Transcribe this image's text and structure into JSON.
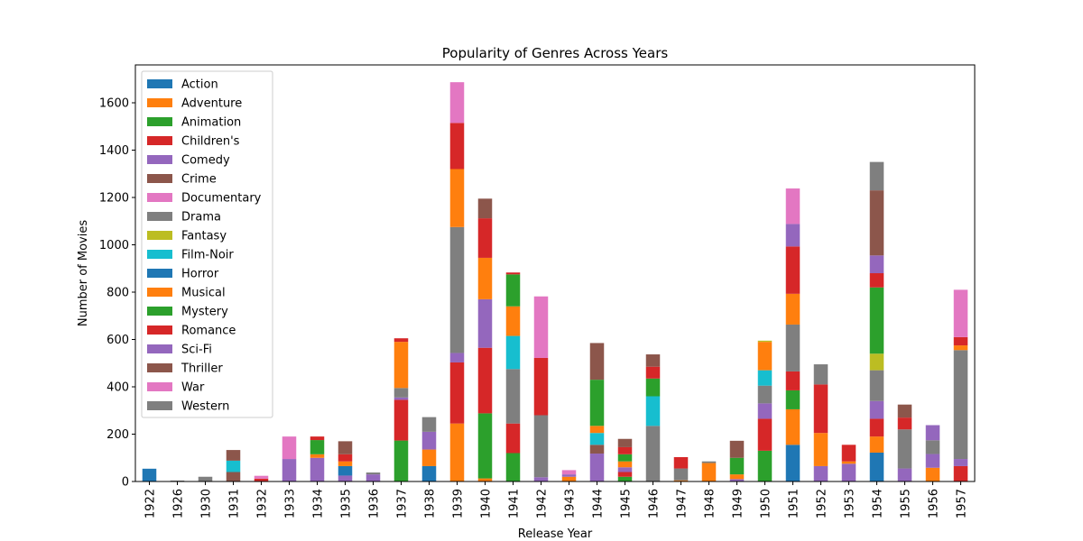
{
  "chart_data": {
    "type": "bar",
    "stacked": true,
    "title": "Popularity of Genres Across Years",
    "xlabel": "Release Year",
    "ylabel": "Number of Movies",
    "ylim": [
      0,
      1760
    ],
    "yticks": [
      0,
      200,
      400,
      600,
      800,
      1000,
      1200,
      1400,
      1600
    ],
    "grid": false,
    "legend_position": "top-left",
    "categories": [
      "1922",
      "1926",
      "1930",
      "1931",
      "1932",
      "1933",
      "1934",
      "1935",
      "1936",
      "1937",
      "1938",
      "1939",
      "1940",
      "1941",
      "1942",
      "1943",
      "1944",
      "1945",
      "1946",
      "1947",
      "1948",
      "1949",
      "1950",
      "1951",
      "1952",
      "1953",
      "1954",
      "1955",
      "1956",
      "1957"
    ],
    "series": [
      {
        "name": "Action",
        "color": "#1f77b4",
        "values": [
          54,
          0,
          0,
          0,
          0,
          0,
          0,
          0,
          0,
          0,
          0,
          0,
          0,
          0,
          0,
          0,
          0,
          0,
          0,
          0,
          0,
          0,
          0,
          0,
          0,
          0,
          0,
          0,
          0,
          0
        ]
      },
      {
        "name": "Adventure",
        "color": "#ff7f0e",
        "values": [
          0,
          0,
          0,
          0,
          0,
          0,
          0,
          0,
          0,
          0,
          0,
          0,
          13,
          0,
          0,
          0,
          0,
          0,
          0,
          0,
          0,
          0,
          0,
          0,
          0,
          0,
          0,
          0,
          0,
          0
        ]
      },
      {
        "name": "Animation",
        "color": "#2ca02c",
        "values": [
          0,
          0,
          0,
          0,
          0,
          0,
          0,
          0,
          0,
          173,
          0,
          0,
          275,
          120,
          0,
          0,
          0,
          20,
          0,
          0,
          0,
          0,
          130,
          0,
          0,
          0,
          0,
          0,
          0,
          0
        ]
      },
      {
        "name": "Children's",
        "color": "#d62728",
        "values": [
          0,
          0,
          0,
          0,
          8,
          0,
          0,
          0,
          0,
          0,
          0,
          0,
          0,
          0,
          0,
          0,
          0,
          20,
          0,
          0,
          0,
          0,
          0,
          0,
          0,
          0,
          0,
          0,
          0,
          0
        ]
      },
      {
        "name": "Comedy",
        "color": "#9467bd",
        "values": [
          0,
          0,
          0,
          0,
          0,
          0,
          0,
          25,
          0,
          0,
          0,
          0,
          0,
          0,
          18,
          0,
          118,
          12,
          0,
          0,
          0,
          0,
          0,
          0,
          0,
          0,
          0,
          0,
          0,
          0
        ]
      },
      {
        "name": "Crime",
        "color": "#8c564b",
        "values": [
          0,
          0,
          0,
          40,
          0,
          0,
          0,
          0,
          0,
          0,
          0,
          0,
          0,
          0,
          0,
          0,
          37,
          0,
          0,
          0,
          0,
          0,
          0,
          0,
          0,
          0,
          0,
          0,
          0,
          0
        ]
      },
      {
        "name": "Documentary",
        "color": "#e377c2",
        "values": [
          0,
          0,
          0,
          0,
          0,
          0,
          0,
          0,
          0,
          0,
          0,
          0,
          0,
          0,
          0,
          0,
          0,
          0,
          0,
          0,
          0,
          0,
          0,
          0,
          0,
          0,
          0,
          0,
          0,
          0
        ]
      },
      {
        "name": "Drama",
        "color": "#7f7f7f",
        "values": [
          0,
          4,
          20,
          0,
          0,
          0,
          0,
          0,
          0,
          0,
          0,
          0,
          0,
          0,
          262,
          0,
          0,
          0,
          235,
          50,
          0,
          0,
          0,
          0,
          0,
          0,
          0,
          0,
          0,
          0
        ]
      },
      {
        "name": "Fantasy",
        "color": "#bcbd22",
        "values": [
          0,
          0,
          0,
          0,
          0,
          0,
          0,
          0,
          0,
          0,
          0,
          0,
          0,
          0,
          0,
          0,
          0,
          0,
          0,
          0,
          0,
          0,
          0,
          0,
          0,
          0,
          0,
          0,
          0,
          0
        ]
      },
      {
        "name": "Film-Noir",
        "color": "#17becf",
        "values": [
          0,
          0,
          0,
          48,
          0,
          0,
          0,
          0,
          0,
          0,
          0,
          0,
          0,
          0,
          0,
          0,
          0,
          0,
          0,
          0,
          0,
          0,
          0,
          0,
          0,
          0,
          0,
          0,
          0,
          0
        ]
      },
      {
        "name": "Horror",
        "color": "#1f77b4",
        "values": [
          0,
          0,
          0,
          0,
          0,
          0,
          0,
          40,
          0,
          0,
          65,
          0,
          0,
          0,
          0,
          0,
          0,
          0,
          0,
          0,
          0,
          0,
          0,
          155,
          0,
          0,
          122,
          0,
          0,
          0
        ]
      },
      {
        "name": "Musical",
        "color": "#ff7f0e",
        "values": [
          0,
          0,
          0,
          0,
          0,
          0,
          10,
          20,
          0,
          0,
          70,
          245,
          0,
          0,
          0,
          20,
          0,
          0,
          0,
          5,
          78,
          20,
          0,
          150,
          0,
          0,
          68,
          0,
          58,
          0
        ]
      },
      {
        "name": "Mystery",
        "color": "#2ca02c",
        "values": [
          0,
          0,
          0,
          0,
          0,
          0,
          58,
          0,
          0,
          0,
          0,
          0,
          0,
          0,
          0,
          0,
          0,
          0,
          0,
          0,
          0,
          0,
          0,
          0,
          0,
          0,
          0,
          0,
          0,
          0
        ]
      },
      {
        "name": "Romance",
        "color": "#d62728",
        "values": [
          0,
          0,
          0,
          0,
          0,
          0,
          0,
          0,
          0,
          0,
          0,
          0,
          0,
          0,
          0,
          0,
          0,
          0,
          0,
          0,
          0,
          0,
          0,
          0,
          0,
          0,
          0,
          0,
          0,
          0
        ]
      },
      {
        "name": "Sci-Fi",
        "color": "#9467bd",
        "values": [
          0,
          0,
          0,
          0,
          0,
          95,
          100,
          0,
          30,
          0,
          0,
          0,
          0,
          0,
          0,
          0,
          0,
          0,
          0,
          0,
          0,
          0,
          0,
          0,
          65,
          75,
          0,
          55,
          0,
          0
        ]
      },
      {
        "name": "Thriller",
        "color": "#8c564b",
        "values": [
          0,
          0,
          0,
          0,
          0,
          0,
          0,
          0,
          0,
          0,
          0,
          0,
          0,
          0,
          0,
          0,
          0,
          0,
          0,
          0,
          0,
          0,
          0,
          0,
          0,
          0,
          0,
          0,
          0,
          0
        ]
      },
      {
        "name": "War",
        "color": "#e377c2",
        "values": [
          0,
          0,
          0,
          0,
          0,
          0,
          0,
          0,
          0,
          0,
          0,
          0,
          0,
          0,
          0,
          0,
          0,
          0,
          0,
          0,
          0,
          0,
          0,
          0,
          0,
          0,
          0,
          0,
          0,
          0
        ]
      },
      {
        "name": "Western",
        "color": "#7f7f7f",
        "values": [
          0,
          0,
          0,
          0,
          0,
          0,
          0,
          0,
          0,
          0,
          0,
          0,
          0,
          0,
          0,
          0,
          0,
          0,
          0,
          0,
          0,
          0,
          0,
          0,
          0,
          0,
          0,
          0,
          0,
          0
        ]
      }
    ],
    "stacks": {
      "1922": [
        [
          "#1f77b4",
          54
        ]
      ],
      "1926": [
        [
          "#7f7f7f",
          4
        ]
      ],
      "1930": [
        [
          "#7f7f7f",
          20
        ]
      ],
      "1931": [
        [
          "#8c564b",
          40
        ],
        [
          "#17becf",
          48
        ],
        [
          "#8c564b",
          45
        ]
      ],
      "1932": [
        [
          "#d62728",
          12
        ],
        [
          "#e377c2",
          12
        ]
      ],
      "1933": [
        [
          "#9467bd",
          95
        ],
        [
          "#e377c2",
          95
        ]
      ],
      "1934": [
        [
          "#9467bd",
          100
        ],
        [
          "#ff7f0e",
          15
        ],
        [
          "#2ca02c",
          60
        ],
        [
          "#d62728",
          15
        ]
      ],
      "1935": [
        [
          "#9467bd",
          25
        ],
        [
          "#1f77b4",
          40
        ],
        [
          "#ff7f0e",
          20
        ],
        [
          "#d62728",
          30
        ],
        [
          "#8c564b",
          55
        ]
      ],
      "1936": [
        [
          "#9467bd",
          30
        ],
        [
          "#7f7f7f",
          8
        ]
      ],
      "1937": [
        [
          "#2ca02c",
          173
        ],
        [
          "#d62728",
          172
        ],
        [
          "#9467bd",
          10
        ],
        [
          "#7f7f7f",
          40
        ],
        [
          "#ff7f0e",
          195
        ],
        [
          "#d62728",
          15
        ]
      ],
      "1938": [
        [
          "#1f77b4",
          65
        ],
        [
          "#ff7f0e",
          70
        ],
        [
          "#9467bd",
          75
        ],
        [
          "#7f7f7f",
          62
        ]
      ],
      "1939": [
        [
          "#ff7f0e",
          245
        ],
        [
          "#d62728",
          258
        ],
        [
          "#9467bd",
          40
        ],
        [
          "#7f7f7f",
          532
        ],
        [
          "#ff7f0e",
          245
        ],
        [
          "#d62728",
          195
        ],
        [
          "#e377c2",
          172
        ]
      ],
      "1940": [
        [
          "#ff7f0e",
          13
        ],
        [
          "#2ca02c",
          275
        ],
        [
          "#d62728",
          277
        ],
        [
          "#9467bd",
          205
        ],
        [
          "#ff7f0e",
          175
        ],
        [
          "#d62728",
          167
        ],
        [
          "#8c564b",
          83
        ]
      ],
      "1941": [
        [
          "#2ca02c",
          120
        ],
        [
          "#d62728",
          125
        ],
        [
          "#7f7f7f",
          230
        ],
        [
          "#17becf",
          140
        ],
        [
          "#ff7f0e",
          125
        ],
        [
          "#2ca02c",
          135
        ],
        [
          "#d62728",
          8
        ]
      ],
      "1942": [
        [
          "#9467bd",
          18
        ],
        [
          "#7f7f7f",
          262
        ],
        [
          "#d62728",
          242
        ],
        [
          "#e377c2",
          260
        ]
      ],
      "1943": [
        [
          "#ff7f0e",
          20
        ],
        [
          "#9467bd",
          10
        ],
        [
          "#e377c2",
          18
        ]
      ],
      "1944": [
        [
          "#9467bd",
          118
        ],
        [
          "#8c564b",
          37
        ],
        [
          "#ff7f0e",
          0
        ],
        [
          "#17becf",
          50
        ],
        [
          "#ff7f0e",
          30
        ],
        [
          "#2ca02c",
          195
        ],
        [
          "#8c564b",
          155
        ]
      ],
      "1945": [
        [
          "#2ca02c",
          20
        ],
        [
          "#d62728",
          20
        ],
        [
          "#9467bd",
          20
        ],
        [
          "#ff7f0e",
          25
        ],
        [
          "#2ca02c",
          30
        ],
        [
          "#d62728",
          30
        ],
        [
          "#8c564b",
          35
        ]
      ],
      "1946": [
        [
          "#7f7f7f",
          235
        ],
        [
          "#17becf",
          125
        ],
        [
          "#2ca02c",
          75
        ],
        [
          "#d62728",
          50
        ],
        [
          "#8c564b",
          52
        ]
      ],
      "1947": [
        [
          "#ff7f0e",
          5
        ],
        [
          "#7f7f7f",
          50
        ],
        [
          "#d62728",
          48
        ]
      ],
      "1948": [
        [
          "#ff7f0e",
          78
        ],
        [
          "#7f7f7f",
          7
        ]
      ],
      "1949": [
        [
          "#9467bd",
          10
        ],
        [
          "#ff7f0e",
          20
        ],
        [
          "#2ca02c",
          70
        ],
        [
          "#8c564b",
          72
        ]
      ],
      "1950": [
        [
          "#2ca02c",
          130
        ],
        [
          "#d62728",
          135
        ],
        [
          "#9467bd",
          65
        ],
        [
          "#7f7f7f",
          75
        ],
        [
          "#17becf",
          65
        ],
        [
          "#ff7f0e",
          120
        ],
        [
          "#bcbd22",
          5
        ]
      ],
      "1951": [
        [
          "#1f77b4",
          155
        ],
        [
          "#ff7f0e",
          150
        ],
        [
          "#2ca02c",
          80
        ],
        [
          "#d62728",
          80
        ],
        [
          "#7f7f7f",
          198
        ],
        [
          "#ff7f0e",
          130
        ],
        [
          "#d62728",
          200
        ],
        [
          "#9467bd",
          95
        ],
        [
          "#e377c2",
          150
        ]
      ],
      "1952": [
        [
          "#9467bd",
          65
        ],
        [
          "#ff7f0e",
          140
        ],
        [
          "#d62728",
          205
        ],
        [
          "#7f7f7f",
          85
        ]
      ],
      "1953": [
        [
          "#9467bd",
          75
        ],
        [
          "#ff7f0e",
          10
        ],
        [
          "#d62728",
          70
        ]
      ],
      "1954": [
        [
          "#1f77b4",
          122
        ],
        [
          "#ff7f0e",
          68
        ],
        [
          "#d62728",
          75
        ],
        [
          "#9467bd",
          75
        ],
        [
          "#7f7f7f",
          130
        ],
        [
          "#bcbd22",
          70
        ],
        [
          "#2ca02c",
          280
        ],
        [
          "#d62728",
          60
        ],
        [
          "#9467bd",
          75
        ],
        [
          "#8c564b",
          275
        ],
        [
          "#7f7f7f",
          120
        ]
      ],
      "1955": [
        [
          "#9467bd",
          55
        ],
        [
          "#7f7f7f",
          165
        ],
        [
          "#d62728",
          50
        ],
        [
          "#8c564b",
          55
        ]
      ],
      "1956": [
        [
          "#ff7f0e",
          58
        ],
        [
          "#9467bd",
          58
        ],
        [
          "#7f7f7f",
          58
        ],
        [
          "#9467bd",
          64
        ]
      ],
      "1957": [
        [
          "#d62728",
          65
        ],
        [
          "#9467bd",
          30
        ],
        [
          "#7f7f7f",
          460
        ],
        [
          "#ff7f0e",
          20
        ],
        [
          "#d62728",
          35
        ],
        [
          "#e377c2",
          200
        ]
      ]
    }
  }
}
